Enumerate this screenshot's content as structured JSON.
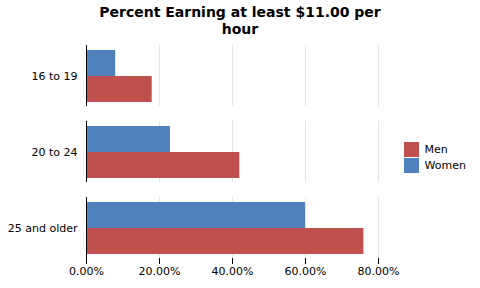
{
  "chart_data": {
    "type": "bar",
    "orientation": "horizontal",
    "title": "Percent Earning at least $11.00 per\nhour",
    "categories": [
      "16 to 19",
      "20 to 24",
      "25 and older"
    ],
    "series": [
      {
        "name": "Men",
        "color": "#C0504D",
        "values": [
          0.18,
          0.42,
          0.76
        ]
      },
      {
        "name": "Women",
        "color": "#4F81BD",
        "values": [
          0.08,
          0.23,
          0.6
        ]
      }
    ],
    "xlim": [
      0,
      0.8
    ],
    "xticks": [
      {
        "value": 0.0,
        "label": "0.00%"
      },
      {
        "value": 0.2,
        "label": "20.00%"
      },
      {
        "value": 0.4,
        "label": "40.00%"
      },
      {
        "value": 0.6,
        "label": "60.00%"
      },
      {
        "value": 0.8,
        "label": "80.00%"
      }
    ],
    "grid": true,
    "legend": "right"
  }
}
